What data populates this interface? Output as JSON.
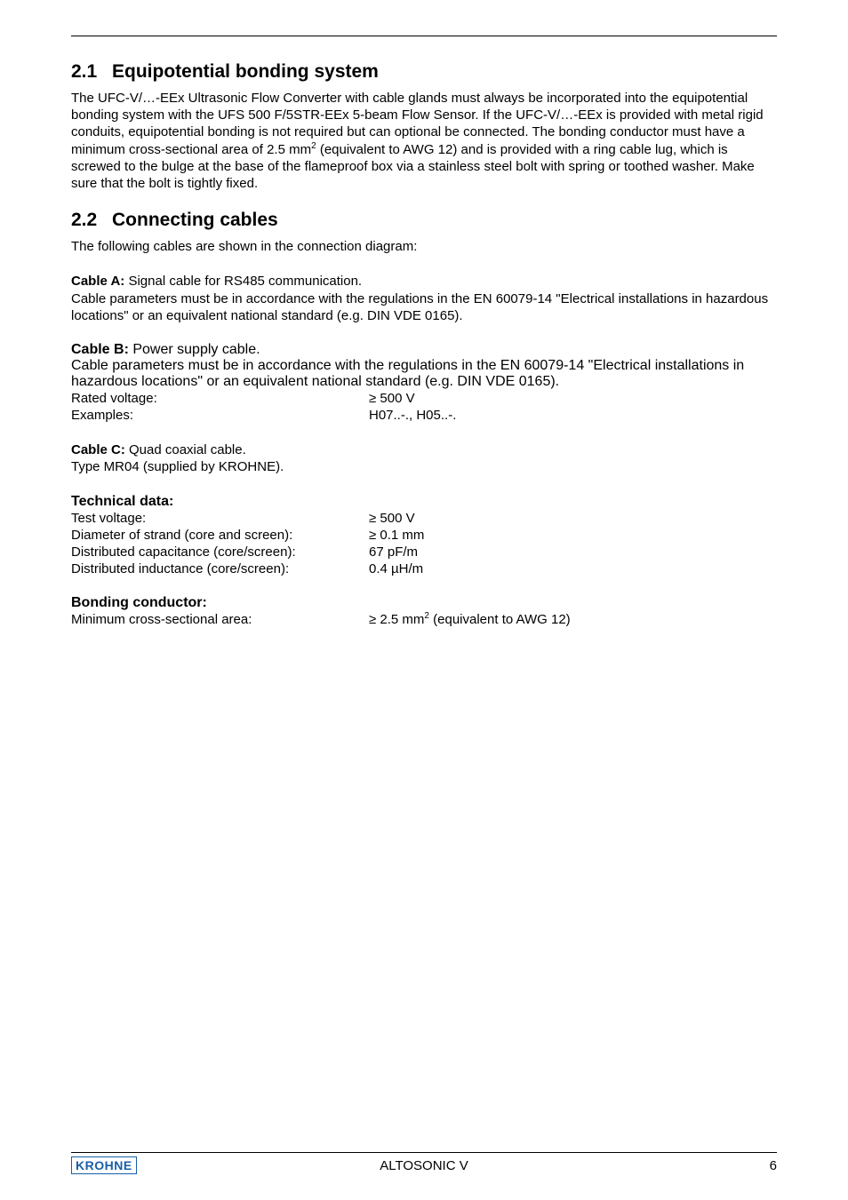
{
  "rule_color": "#000000",
  "text_color": "#000000",
  "bg_color": "#ffffff",
  "logo_color": "#1860a8",
  "fonts": {
    "body_pt": 15,
    "h2_pt": 21,
    "sup_pt": 10
  },
  "sec21": {
    "num": "2.1",
    "title": "Equipotential bonding system",
    "para": "The UFC-V/…-EEx Ultrasonic Flow Converter with cable glands must always be incorporated into the equipotential bonding system with the UFS 500 F/5STR-EEx 5-beam Flow Sensor. If the UFC-V/…-EEx is provided with metal rigid conduits, equipotential bonding is not required but can optional be connected. The bonding conductor must have a minimum cross-sectional area of 2.5 mm",
    "para_sup": "2",
    "para_after": " (equivalent to AWG 12) and is provided with a ring cable lug, which is screwed to the bulge at the base of the flameproof box via a stainless steel bolt with spring or toothed washer. Make sure that the bolt is tightly fixed."
  },
  "sec22": {
    "num": "2.2",
    "title": "Connecting cables",
    "intro": "The following cables are shown in the connection diagram:",
    "cableA_label": "Cable A:",
    "cableA_desc": " Signal cable for RS485 communication.",
    "cableA_para": "Cable parameters must be in accordance with the regulations in the EN 60079-14 \"Electrical installations in hazardous locations\" or an equivalent national standard (e.g. DIN VDE 0165).",
    "cableB_label": "Cable B:",
    "cableB_desc": " Power supply cable.",
    "cableB_para": "Cable parameters must be in accordance with the regulations in the EN 60079-14 \"Electrical installations in hazardous locations\" or an equivalent national standard (e.g. DIN VDE 0165).",
    "cableB_rv_key": "Rated voltage:",
    "cableB_rv_val": "≥ 500 V",
    "cableB_ex_key": "Examples:",
    "cableB_ex_val": "H07..-., H05..-.",
    "cableC_label": "Cable C:",
    "cableC_desc": " Quad coaxial cable.",
    "cableC_line2": "Type MR04 (supplied by KROHNE).",
    "tech_heading": "Technical data:",
    "tech_tv_key": "Test voltage:",
    "tech_tv_val": "≥ 500 V",
    "tech_ds_key": "Diameter of strand (core and screen):",
    "tech_ds_val": "≥ 0.1 mm",
    "tech_dc_key": "Distributed capacitance (core/screen):",
    "tech_dc_val": "67 pF/m",
    "tech_di_key": "Distributed inductance (core/screen):",
    "tech_di_val": "0.4 µH/m",
    "bond_heading": "Bonding conductor:",
    "bond_key": "Minimum cross-sectional area:",
    "bond_val_pre": "≥ 2.5 mm",
    "bond_val_sup": "2",
    "bond_val_post": " (equivalent to AWG 12)"
  },
  "footer": {
    "logo": "KROHNE",
    "center": "ALTOSONIC V",
    "page": "6"
  }
}
